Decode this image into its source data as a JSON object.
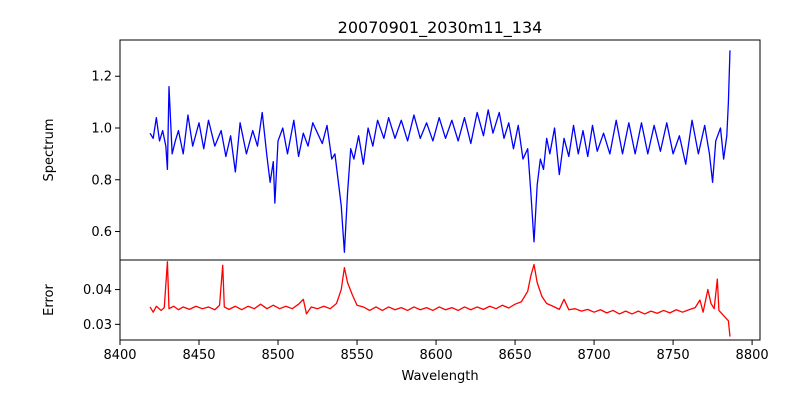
{
  "chart_data": [
    {
      "type": "line",
      "title": "20070901_2030m11_134",
      "xlabel": "",
      "ylabel": "Spectrum",
      "xlim": [
        8400,
        8805
      ],
      "ylim": [
        0.49,
        1.34
      ],
      "yticks": [
        0.6,
        0.8,
        1.0,
        1.2
      ],
      "ytick_labels": [
        "0.6",
        "0.8",
        "1.0",
        "1.2"
      ],
      "grid": false,
      "x_range": [
        8419,
        8786
      ],
      "series": [
        {
          "color": "#0000ff",
          "points": [
            [
              8419,
              0.98
            ],
            [
              8421,
              0.96
            ],
            [
              8423,
              1.04
            ],
            [
              8425,
              0.95
            ],
            [
              8427,
              0.99
            ],
            [
              8429,
              0.93
            ],
            [
              8430,
              0.84
            ],
            [
              8431,
              1.16
            ],
            [
              8433,
              0.9
            ],
            [
              8435,
              0.95
            ],
            [
              8437,
              0.99
            ],
            [
              8440,
              0.9
            ],
            [
              8443,
              1.05
            ],
            [
              8446,
              0.93
            ],
            [
              8450,
              1.02
            ],
            [
              8453,
              0.92
            ],
            [
              8456,
              1.03
            ],
            [
              8460,
              0.93
            ],
            [
              8464,
              0.99
            ],
            [
              8467,
              0.89
            ],
            [
              8470,
              0.97
            ],
            [
              8473,
              0.83
            ],
            [
              8476,
              1.02
            ],
            [
              8480,
              0.9
            ],
            [
              8484,
              0.99
            ],
            [
              8487,
              0.93
            ],
            [
              8490,
              1.06
            ],
            [
              8493,
              0.89
            ],
            [
              8495,
              0.79
            ],
            [
              8497,
              0.87
            ],
            [
              8498,
              0.71
            ],
            [
              8500,
              0.95
            ],
            [
              8503,
              1.0
            ],
            [
              8506,
              0.9
            ],
            [
              8510,
              1.03
            ],
            [
              8513,
              0.89
            ],
            [
              8516,
              0.98
            ],
            [
              8519,
              0.93
            ],
            [
              8522,
              1.02
            ],
            [
              8525,
              0.98
            ],
            [
              8528,
              0.94
            ],
            [
              8531,
              1.01
            ],
            [
              8534,
              0.88
            ],
            [
              8536,
              0.9
            ],
            [
              8538,
              0.8
            ],
            [
              8540,
              0.7
            ],
            [
              8542,
              0.52
            ],
            [
              8544,
              0.75
            ],
            [
              8546,
              0.92
            ],
            [
              8548,
              0.88
            ],
            [
              8551,
              0.97
            ],
            [
              8554,
              0.86
            ],
            [
              8557,
              1.0
            ],
            [
              8560,
              0.93
            ],
            [
              8563,
              1.03
            ],
            [
              8567,
              0.96
            ],
            [
              8570,
              1.04
            ],
            [
              8574,
              0.96
            ],
            [
              8578,
              1.03
            ],
            [
              8582,
              0.95
            ],
            [
              8586,
              1.05
            ],
            [
              8590,
              0.96
            ],
            [
              8594,
              1.02
            ],
            [
              8598,
              0.95
            ],
            [
              8602,
              1.04
            ],
            [
              8606,
              0.96
            ],
            [
              8610,
              1.03
            ],
            [
              8614,
              0.95
            ],
            [
              8618,
              1.04
            ],
            [
              8622,
              0.94
            ],
            [
              8626,
              1.06
            ],
            [
              8630,
              0.97
            ],
            [
              8633,
              1.07
            ],
            [
              8636,
              0.98
            ],
            [
              8640,
              1.06
            ],
            [
              8643,
              0.96
            ],
            [
              8646,
              1.02
            ],
            [
              8649,
              0.92
            ],
            [
              8652,
              1.01
            ],
            [
              8655,
              0.88
            ],
            [
              8658,
              0.92
            ],
            [
              8660,
              0.75
            ],
            [
              8662,
              0.56
            ],
            [
              8664,
              0.78
            ],
            [
              8666,
              0.88
            ],
            [
              8668,
              0.84
            ],
            [
              8670,
              0.96
            ],
            [
              8672,
              0.9
            ],
            [
              8675,
              1.0
            ],
            [
              8678,
              0.82
            ],
            [
              8681,
              0.96
            ],
            [
              8684,
              0.89
            ],
            [
              8687,
              1.01
            ],
            [
              8690,
              0.9
            ],
            [
              8693,
              0.99
            ],
            [
              8696,
              0.89
            ],
            [
              8699,
              1.01
            ],
            [
              8702,
              0.91
            ],
            [
              8706,
              0.98
            ],
            [
              8710,
              0.9
            ],
            [
              8714,
              1.03
            ],
            [
              8718,
              0.9
            ],
            [
              8722,
              1.02
            ],
            [
              8726,
              0.9
            ],
            [
              8730,
              1.02
            ],
            [
              8734,
              0.9
            ],
            [
              8738,
              1.01
            ],
            [
              8742,
              0.91
            ],
            [
              8746,
              1.02
            ],
            [
              8750,
              0.9
            ],
            [
              8754,
              0.97
            ],
            [
              8758,
              0.86
            ],
            [
              8762,
              1.03
            ],
            [
              8766,
              0.9
            ],
            [
              8770,
              1.01
            ],
            [
              8773,
              0.9
            ],
            [
              8775,
              0.79
            ],
            [
              8777,
              0.95
            ],
            [
              8780,
              1.0
            ],
            [
              8782,
              0.88
            ],
            [
              8784,
              0.97
            ],
            [
              8785,
              1.1
            ],
            [
              8786,
              1.3
            ]
          ]
        }
      ]
    },
    {
      "type": "line",
      "title": "",
      "xlabel": "Wavelength",
      "ylabel": "Error",
      "xlim": [
        8400,
        8805
      ],
      "ylim": [
        0.0255,
        0.0485
      ],
      "xticks": [
        8400,
        8450,
        8500,
        8550,
        8600,
        8650,
        8700,
        8750,
        8800
      ],
      "xtick_labels": [
        "8400",
        "8450",
        "8500",
        "8550",
        "8600",
        "8650",
        "8700",
        "8750",
        "8800"
      ],
      "yticks": [
        0.03,
        0.04
      ],
      "ytick_labels": [
        "0.03",
        "0.04"
      ],
      "grid": false,
      "x_range": [
        8419,
        8786
      ],
      "series": [
        {
          "color": "#ff0000",
          "points": [
            [
              8419,
              0.035
            ],
            [
              8421,
              0.0335
            ],
            [
              8423,
              0.0352
            ],
            [
              8426,
              0.034
            ],
            [
              8428,
              0.0348
            ],
            [
              8430,
              0.048
            ],
            [
              8431,
              0.0345
            ],
            [
              8434,
              0.0352
            ],
            [
              8437,
              0.0342
            ],
            [
              8440,
              0.035
            ],
            [
              8444,
              0.0343
            ],
            [
              8448,
              0.0352
            ],
            [
              8452,
              0.0345
            ],
            [
              8456,
              0.035
            ],
            [
              8460,
              0.0342
            ],
            [
              8463,
              0.0355
            ],
            [
              8465,
              0.047
            ],
            [
              8466,
              0.035
            ],
            [
              8469,
              0.0343
            ],
            [
              8473,
              0.0352
            ],
            [
              8477,
              0.0342
            ],
            [
              8481,
              0.0352
            ],
            [
              8485,
              0.0345
            ],
            [
              8489,
              0.0358
            ],
            [
              8493,
              0.0345
            ],
            [
              8497,
              0.0355
            ],
            [
              8501,
              0.0345
            ],
            [
              8505,
              0.0352
            ],
            [
              8509,
              0.0345
            ],
            [
              8513,
              0.0358
            ],
            [
              8516,
              0.0372
            ],
            [
              8518,
              0.033
            ],
            [
              8521,
              0.035
            ],
            [
              8525,
              0.0345
            ],
            [
              8529,
              0.0352
            ],
            [
              8533,
              0.0345
            ],
            [
              8537,
              0.036
            ],
            [
              8540,
              0.04
            ],
            [
              8542,
              0.0463
            ],
            [
              8544,
              0.042
            ],
            [
              8547,
              0.0385
            ],
            [
              8550,
              0.0355
            ],
            [
              8554,
              0.035
            ],
            [
              8558,
              0.034
            ],
            [
              8562,
              0.035
            ],
            [
              8566,
              0.034
            ],
            [
              8570,
              0.035
            ],
            [
              8574,
              0.0342
            ],
            [
              8578,
              0.0348
            ],
            [
              8582,
              0.034
            ],
            [
              8586,
              0.035
            ],
            [
              8590,
              0.0342
            ],
            [
              8594,
              0.0348
            ],
            [
              8598,
              0.034
            ],
            [
              8602,
              0.035
            ],
            [
              8606,
              0.0342
            ],
            [
              8610,
              0.0348
            ],
            [
              8614,
              0.034
            ],
            [
              8618,
              0.035
            ],
            [
              8622,
              0.0342
            ],
            [
              8626,
              0.035
            ],
            [
              8630,
              0.0343
            ],
            [
              8634,
              0.0352
            ],
            [
              8638,
              0.0345
            ],
            [
              8642,
              0.0355
            ],
            [
              8646,
              0.0347
            ],
            [
              8650,
              0.0358
            ],
            [
              8654,
              0.0365
            ],
            [
              8658,
              0.0395
            ],
            [
              8660,
              0.044
            ],
            [
              8662,
              0.0472
            ],
            [
              8664,
              0.042
            ],
            [
              8667,
              0.038
            ],
            [
              8670,
              0.036
            ],
            [
              8674,
              0.0352
            ],
            [
              8678,
              0.0343
            ],
            [
              8681,
              0.0372
            ],
            [
              8684,
              0.0342
            ],
            [
              8688,
              0.0345
            ],
            [
              8692,
              0.0338
            ],
            [
              8696,
              0.0343
            ],
            [
              8700,
              0.0335
            ],
            [
              8704,
              0.0342
            ],
            [
              8708,
              0.0333
            ],
            [
              8712,
              0.034
            ],
            [
              8716,
              0.033
            ],
            [
              8720,
              0.0338
            ],
            [
              8724,
              0.033
            ],
            [
              8728,
              0.0338
            ],
            [
              8732,
              0.033
            ],
            [
              8736,
              0.0338
            ],
            [
              8740,
              0.0332
            ],
            [
              8744,
              0.034
            ],
            [
              8748,
              0.0333
            ],
            [
              8752,
              0.0342
            ],
            [
              8756,
              0.0335
            ],
            [
              8760,
              0.0342
            ],
            [
              8764,
              0.0348
            ],
            [
              8767,
              0.037
            ],
            [
              8769,
              0.0335
            ],
            [
              8772,
              0.04
            ],
            [
              8774,
              0.036
            ],
            [
              8776,
              0.0345
            ],
            [
              8778,
              0.043
            ],
            [
              8779,
              0.034
            ],
            [
              8781,
              0.033
            ],
            [
              8783,
              0.032
            ],
            [
              8785,
              0.031
            ],
            [
              8786,
              0.0265
            ]
          ]
        }
      ]
    }
  ]
}
